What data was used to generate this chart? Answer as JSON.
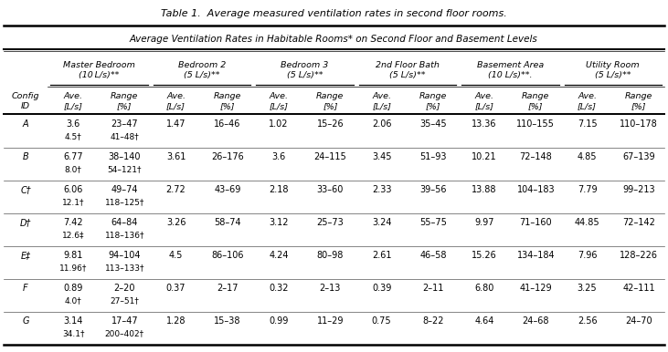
{
  "title": "Table 1.  Average measured ventilation rates in second floor rooms.",
  "subtitle": "Average Ventilation Rates in Habitable Rooms* on Second Floor and Basement Levels",
  "group_labels": [
    "Master Bedroom\n(10 L/s)**",
    "Bedroom 2\n(5 L/s)**",
    "Bedroom 3\n(5 L/s)**",
    "2nd Floor Bath\n(5 L/s)**",
    "Basement Area\n(10 L/s)**.",
    "Utility Room\n(5 L/s)**"
  ],
  "subheaders": [
    "Ave.\n[L/s]",
    "Range\n[%]"
  ],
  "rows": [
    {
      "id": "A",
      "line1": [
        "3.6",
        "23–47",
        "1.47",
        "16–46",
        "1.02",
        "15–26",
        "2.06",
        "35–45",
        "13.36",
        "110–155",
        "7.15",
        "110–178"
      ],
      "line2": [
        "4.5†",
        "41–48†",
        "",
        "",
        "",
        "",
        "",
        "",
        "",
        "",
        "",
        ""
      ]
    },
    {
      "id": "B",
      "line1": [
        "6.77",
        "38–140",
        "3.61",
        "26–176",
        "3.6",
        "24–115",
        "3.45",
        "51–93",
        "10.21",
        "72–148",
        "4.85",
        "67–139"
      ],
      "line2": [
        "8.0†",
        "54–121†",
        "",
        "",
        "",
        "",
        "",
        "",
        "",
        "",
        "",
        ""
      ]
    },
    {
      "id": "C†",
      "line1": [
        "6.06",
        "49–74",
        "2.72",
        "43–69",
        "2.18",
        "33–60",
        "2.33",
        "39–56",
        "13.88",
        "104–183",
        "7.79",
        "99–213"
      ],
      "line2": [
        "12.1†",
        "118–125†",
        "",
        "",
        "",
        "",
        "",
        "",
        "",
        "",
        "",
        ""
      ]
    },
    {
      "id": "D†",
      "line1": [
        "7.42",
        "64–84",
        "3.26",
        "58–74",
        "3.12",
        "25–73",
        "3.24",
        "55–75",
        "9.97",
        "71–160",
        "44.85",
        "72–142"
      ],
      "line2": [
        "12.6‡",
        "118–136†",
        "",
        "",
        "",
        "",
        "",
        "",
        "",
        "",
        "",
        ""
      ]
    },
    {
      "id": "E‡",
      "line1": [
        "9.81",
        "94–104",
        "4.5",
        "86–106",
        "4.24",
        "80–98",
        "2.61",
        "46–58",
        "15.26",
        "134–184",
        "7.96",
        "128–226"
      ],
      "line2": [
        "11.96†",
        "113–133†",
        "",
        "",
        "",
        "",
        "",
        "",
        "",
        "",
        "",
        ""
      ]
    },
    {
      "id": "F",
      "line1": [
        "0.89",
        "2–20",
        "0.37",
        "2–17",
        "0.32",
        "2–13",
        "0.39",
        "2–11",
        "6.80",
        "41–129",
        "3.25",
        "42–111"
      ],
      "line2": [
        "4.0†",
        "27–51†",
        "",
        "",
        "",
        "",
        "",
        "",
        "",
        "",
        "",
        ""
      ]
    },
    {
      "id": "G",
      "line1": [
        "3.14",
        "17–47",
        "1.28",
        "15–38",
        "0.99",
        "11–29",
        "0.75",
        "8–22",
        "4.64",
        "24–68",
        "2.56",
        "24–70"
      ],
      "line2": [
        "34.1†",
        "200–402†",
        "",
        "",
        "",
        "",
        "",
        "",
        "",
        "",
        "",
        ""
      ]
    }
  ],
  "bg_color": "#ffffff",
  "text_color": "#000000"
}
